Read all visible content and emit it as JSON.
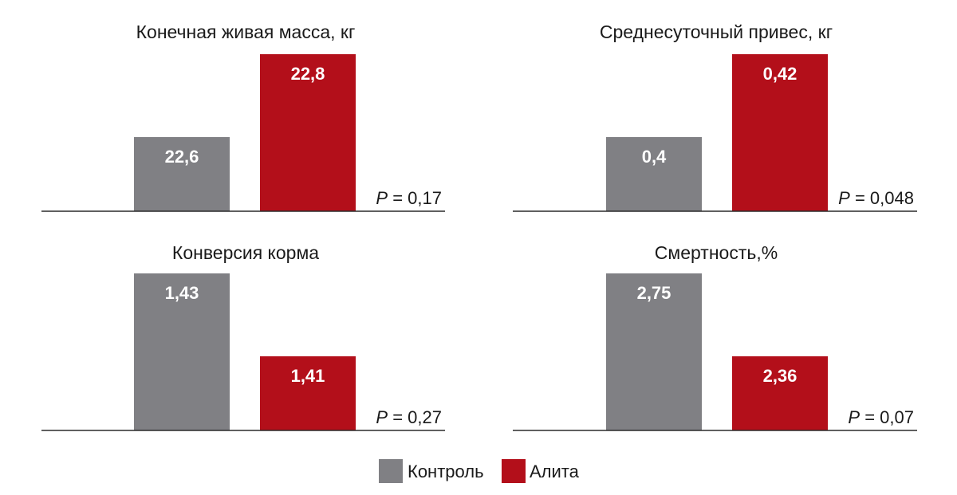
{
  "chart_data": [
    {
      "type": "bar",
      "title": "Конечная живая масса, кг",
      "categories": [
        "Контроль",
        "Алита"
      ],
      "values": [
        22.6,
        22.8
      ],
      "value_labels": [
        "22,6",
        "22,8"
      ],
      "p_label": "P",
      "p_text": " = 0,17"
    },
    {
      "type": "bar",
      "title": "Среднесуточный привес, кг",
      "categories": [
        "Контроль",
        "Алита"
      ],
      "values": [
        0.4,
        0.42
      ],
      "value_labels": [
        "0,4",
        "0,42"
      ],
      "p_label": "P",
      "p_text": " = 0,048"
    },
    {
      "type": "bar",
      "title": "Конверсия корма",
      "categories": [
        "Контроль",
        "Алита"
      ],
      "values": [
        1.43,
        1.41
      ],
      "value_labels": [
        "1,43",
        "1,41"
      ],
      "p_label": "P",
      "p_text": " = 0,27"
    },
    {
      "type": "bar",
      "title": "Смертность,%",
      "categories": [
        "Контроль",
        "Алита"
      ],
      "values": [
        2.75,
        2.36
      ],
      "value_labels": [
        "2,75",
        "2,36"
      ],
      "p_label": "P",
      "p_text": " = 0,07"
    }
  ],
  "legend": [
    {
      "label": "Контроль",
      "color": "#808084"
    },
    {
      "label": "Алита",
      "color": "#b30f1a"
    }
  ],
  "colors": {
    "control": "#808084",
    "alita": "#b30f1a"
  }
}
